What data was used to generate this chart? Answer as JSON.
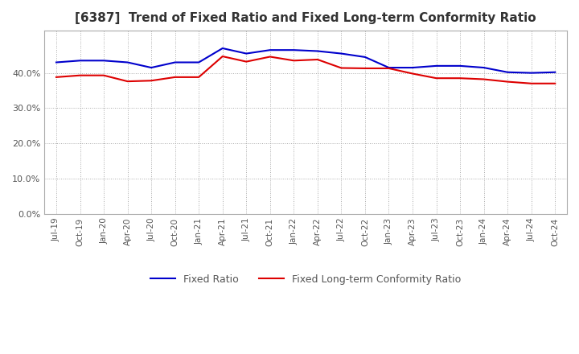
{
  "title": "[6387]  Trend of Fixed Ratio and Fixed Long-term Conformity Ratio",
  "xlabel": "",
  "ylabel": "",
  "ylim": [
    0.0,
    0.52
  ],
  "yticks": [
    0.0,
    0.1,
    0.2,
    0.3,
    0.4
  ],
  "background_color": "#ffffff",
  "plot_bg_color": "#ffffff",
  "grid_color": "#aaaaaa",
  "line1_color": "#0000cc",
  "line2_color": "#dd0000",
  "line1_label": "Fixed Ratio",
  "line2_label": "Fixed Long-term Conformity Ratio",
  "x_labels": [
    "Jul-19",
    "Oct-19",
    "Jan-20",
    "Apr-20",
    "Jul-20",
    "Oct-20",
    "Jan-21",
    "Apr-21",
    "Jul-21",
    "Oct-21",
    "Jan-22",
    "Apr-22",
    "Jul-22",
    "Oct-22",
    "Jan-23",
    "Apr-23",
    "Jul-23",
    "Oct-23",
    "Jan-24",
    "Apr-24",
    "Jul-24",
    "Oct-24"
  ],
  "fixed_ratio": [
    0.43,
    0.435,
    0.435,
    0.43,
    0.415,
    0.43,
    0.43,
    0.47,
    0.455,
    0.465,
    0.465,
    0.462,
    0.455,
    0.445,
    0.415,
    0.415,
    0.42,
    0.42,
    0.415,
    0.402,
    0.4,
    0.402
  ],
  "fixed_lt_conformity": [
    0.388,
    0.393,
    0.393,
    0.376,
    0.378,
    0.388,
    0.388,
    0.447,
    0.432,
    0.446,
    0.435,
    0.438,
    0.414,
    0.413,
    0.413,
    0.398,
    0.385,
    0.385,
    0.382,
    0.375,
    0.37,
    0.37
  ]
}
